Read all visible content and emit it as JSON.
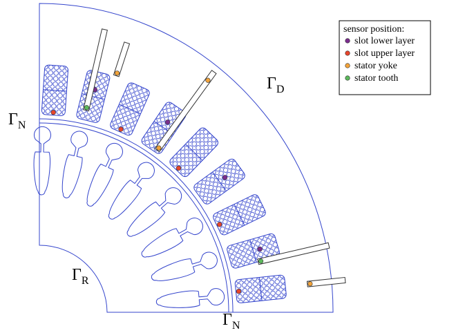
{
  "boundary_labels": [
    {
      "symbol": "Γ",
      "subscript": "N"
    },
    {
      "symbol": "Γ",
      "subscript": "D"
    },
    {
      "symbol": "Γ",
      "subscript": "R"
    },
    {
      "symbol": "Γ",
      "subscript": "N"
    }
  ],
  "legend": {
    "title": "sensor position:",
    "items": [
      {
        "label": "slot lower layer",
        "color": "#7b2d8e"
      },
      {
        "label": "slot upper layer",
        "color": "#e8452c"
      },
      {
        "label": "stator yoke",
        "color": "#f2a33a"
      },
      {
        "label": "stator tooth",
        "color": "#5cb85c"
      }
    ]
  }
}
